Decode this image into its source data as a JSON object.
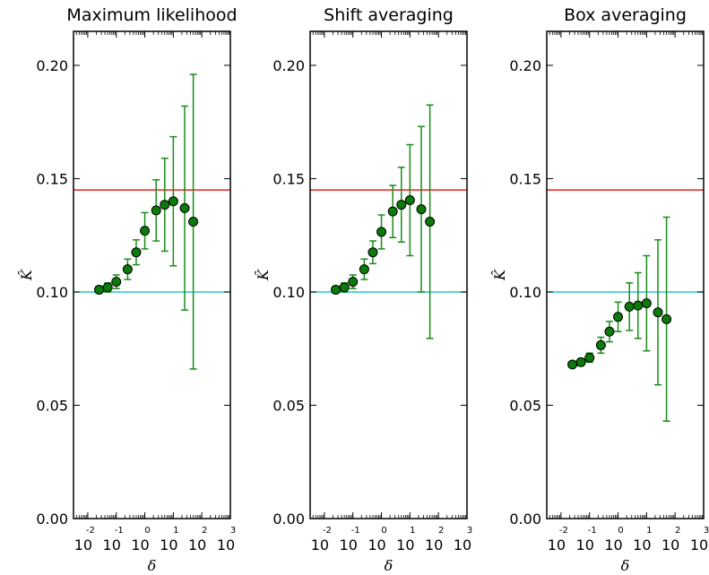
{
  "chart_data": [
    {
      "type": "scatter",
      "title": "Maximum likelihood",
      "xlabel": "δ",
      "ylabel": "K̂",
      "xscale": "log",
      "xlim_exp": [
        -2.5,
        3
      ],
      "ylim": [
        0,
        0.215
      ],
      "y_ticks": [
        "0.00",
        "0.05",
        "0.10",
        "0.15",
        "0.20"
      ],
      "x_ticks": [
        {
          "base": "10",
          "exp": "-2"
        },
        {
          "base": "10",
          "exp": "-1"
        },
        {
          "base": "10",
          "exp": "0"
        },
        {
          "base": "10",
          "exp": "1"
        },
        {
          "base": "10",
          "exp": "2"
        },
        {
          "base": "10",
          "exp": "3"
        }
      ],
      "hlines": [
        {
          "y": 0.145,
          "color": "#e8231e"
        },
        {
          "y": 0.1,
          "color": "#22c5d5"
        }
      ],
      "x": [
        0.025,
        0.05,
        0.1,
        0.25,
        0.5,
        1,
        2.5,
        5,
        10,
        25,
        50
      ],
      "y": [
        0.101,
        0.102,
        0.1045,
        0.11,
        0.1175,
        0.127,
        0.136,
        0.1385,
        0.14,
        0.137,
        0.131
      ],
      "yerr": [
        0.0015,
        0.002,
        0.003,
        0.0045,
        0.0055,
        0.008,
        0.0135,
        0.0205,
        0.0285,
        0.045,
        0.065
      ]
    },
    {
      "type": "scatter",
      "title": "Shift averaging",
      "xlabel": "δ",
      "ylabel": "K̂",
      "xscale": "log",
      "xlim_exp": [
        -2.5,
        3
      ],
      "ylim": [
        0,
        0.215
      ],
      "y_ticks": [
        "0.00",
        "0.05",
        "0.10",
        "0.15",
        "0.20"
      ],
      "x_ticks": [
        {
          "base": "10",
          "exp": "-2"
        },
        {
          "base": "10",
          "exp": "-1"
        },
        {
          "base": "10",
          "exp": "0"
        },
        {
          "base": "10",
          "exp": "1"
        },
        {
          "base": "10",
          "exp": "2"
        },
        {
          "base": "10",
          "exp": "3"
        }
      ],
      "hlines": [
        {
          "y": 0.145,
          "color": "#e8231e"
        },
        {
          "y": 0.1,
          "color": "#22c5d5"
        }
      ],
      "x": [
        0.025,
        0.05,
        0.1,
        0.25,
        0.5,
        1,
        2.5,
        5,
        10,
        25,
        50
      ],
      "y": [
        0.101,
        0.102,
        0.1045,
        0.11,
        0.1175,
        0.1265,
        0.1355,
        0.1385,
        0.1405,
        0.1365,
        0.131
      ],
      "yerr": [
        0.0015,
        0.002,
        0.003,
        0.0045,
        0.005,
        0.0075,
        0.0115,
        0.0165,
        0.0245,
        0.0365,
        0.0515
      ]
    },
    {
      "type": "scatter",
      "title": "Box averaging",
      "xlabel": "δ",
      "ylabel": "K̂",
      "xscale": "log",
      "xlim_exp": [
        -2.5,
        3
      ],
      "ylim": [
        0,
        0.215
      ],
      "y_ticks": [
        "0.00",
        "0.05",
        "0.10",
        "0.15",
        "0.20"
      ],
      "x_ticks": [
        {
          "base": "10",
          "exp": "-2"
        },
        {
          "base": "10",
          "exp": "-1"
        },
        {
          "base": "10",
          "exp": "0"
        },
        {
          "base": "10",
          "exp": "1"
        },
        {
          "base": "10",
          "exp": "2"
        },
        {
          "base": "10",
          "exp": "3"
        }
      ],
      "hlines": [
        {
          "y": 0.145,
          "color": "#e8231e"
        },
        {
          "y": 0.1,
          "color": "#22c5d5"
        }
      ],
      "x": [
        0.025,
        0.05,
        0.1,
        0.25,
        0.5,
        1,
        2.5,
        5,
        10,
        25,
        50
      ],
      "y": [
        0.068,
        0.069,
        0.071,
        0.0765,
        0.0825,
        0.089,
        0.0935,
        0.094,
        0.095,
        0.091,
        0.088
      ],
      "yerr": [
        0.001,
        0.0015,
        0.002,
        0.0035,
        0.0045,
        0.0065,
        0.0105,
        0.0145,
        0.021,
        0.032,
        0.045
      ]
    }
  ],
  "colors": {
    "marker_fill": "#0a7a0a",
    "errorbar": "#1a8c1a",
    "axes": "#000000"
  }
}
